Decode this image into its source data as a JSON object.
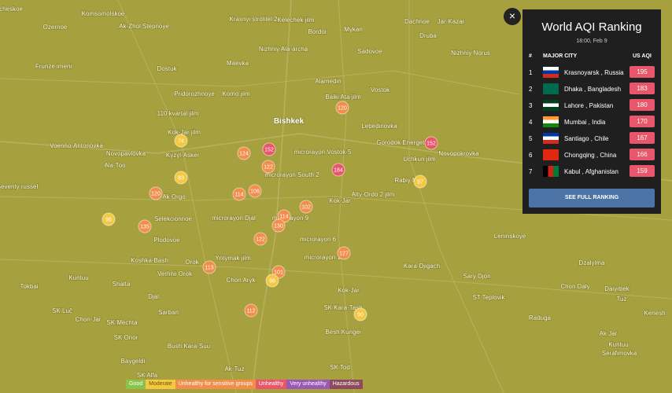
{
  "map": {
    "labels": [
      "cheskoe",
      "Komsomolskoe",
      "Ozernoe",
      "Ak-Zhol Stepnoye",
      "Krasnyi strolitel 2",
      "Kelechek jilm",
      "Bordoi",
      "Mykan",
      "Dachnoe",
      "Jar-Kazar",
      "Druba",
      "Nizhniy Ala-archa",
      "Sadovoe",
      "Frunze imeni",
      "Dostuk",
      "Maevka",
      "Nizhniy Norus",
      "Pridorozhnoye",
      "Komo jilm",
      "Alamedin",
      "Baiki Ata jilm",
      "Vostok",
      "110 kvartal jilm",
      "Lebedinovka",
      "Kok-Jar jilm",
      "Bishkek",
      "Gorodok Energetikov",
      "Voenno-Antonovka",
      "Novopavlovka",
      "Kyzyl-Asker",
      "microrayon Vostok-5",
      "Uchkun jilm",
      "Novopokrovka",
      "Ala-Too",
      "microrayon South 2",
      "Rabiy M",
      "Seventy russel",
      "Alty-Ordo 2 jilm",
      "Ak Orgo",
      "Kok-Jar",
      "Selekcionnoe",
      "microrayon Djal",
      "microrayon 9",
      "Plodovoe",
      "microrayon 6",
      "Leninskoye",
      "Koshka-Bash",
      "Yntymak jilm",
      "Orok",
      "microrayon 12",
      "Kara-Djigach",
      "Dzalylma",
      "Verhnii Orok",
      "Chon Aryk",
      "Kuntuu",
      "Shalta",
      "Sary Djon",
      "Tokbai",
      "Kok-Jar",
      "Chon Daly",
      "Daiyrbek",
      "Djal",
      "ST Teplovik",
      "Tuz",
      "SK Luč",
      "Sarban",
      "SK Kara-Tash",
      "Chon-Jar",
      "SK Mechta",
      "Raduga",
      "Kenesh",
      "SK Onor",
      "Besh Kungei",
      "Ak Jar",
      "Bush Kara-Suu",
      "Kuntuu",
      "Serafimovka",
      "Baygeldi",
      "SK Tod",
      "Ak-Tuz",
      "SK Alfa"
    ],
    "markers": [
      74,
      83,
      96,
      120,
      135,
      124,
      152,
      122,
      184,
      120,
      152,
      97,
      114,
      106,
      102,
      114,
      130,
      122,
      127,
      113,
      101,
      98,
      112,
      90
    ]
  },
  "panel": {
    "title": "World AQI Ranking",
    "time": "18:00, Feb 9",
    "headers": [
      "#",
      "MAJOR CITY",
      "US AQI"
    ],
    "rows": [
      [
        1,
        "Krasnoyarsk , Russia",
        195
      ],
      [
        2,
        "Dhaka , Bangladesh",
        183
      ],
      [
        3,
        "Lahore , Pakistan",
        180
      ],
      [
        4,
        "Mumbai , India",
        170
      ],
      [
        5,
        "Santiago , Chile",
        167
      ],
      [
        6,
        "Chongqing , China",
        166
      ],
      [
        7,
        "Kabul , Afghanistan",
        159
      ]
    ],
    "button": "SEE FULL RANKING"
  },
  "legend": [
    "Good",
    "Moderate",
    "Unhealthy for sensitive groups",
    "Unhealthy",
    "Very unhealthy",
    "Hazardous"
  ]
}
